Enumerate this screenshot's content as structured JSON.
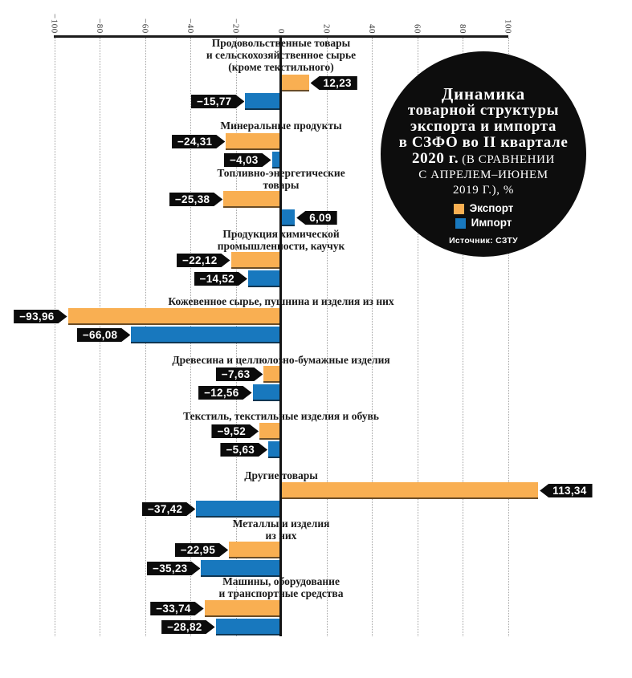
{
  "badge": {
    "title_bold_lines": [
      "Динамика",
      "товарной структуры",
      "экспорта и импорта",
      "в СЗФО во II квартале"
    ],
    "title_bold_inline": "2020 г.",
    "subtitle_inline": "(В СРАВНЕНИИ",
    "subtitle_line2": "С АПРЕЛЕМ–ИЮНЕМ",
    "subtitle_line3": "2019 Г.), %",
    "legend": [
      {
        "label": "Экспорт",
        "color": "#F9AF52"
      },
      {
        "label": "Импорт",
        "color": "#1878BE"
      }
    ],
    "source": "Источник: СЗТУ"
  },
  "chart_data": {
    "type": "bar",
    "orientation": "horizontal",
    "title": "Динамика товарной структуры экспорта и импорта в СЗФО во II квартале 2020 г. (в сравнении с апрелем–июнем 2019 г.), %",
    "source": "Источник: СЗТУ",
    "xlim": [
      -100,
      100
    ],
    "ticks": [
      -100,
      -80,
      -60,
      -40,
      -20,
      0,
      20,
      40,
      60,
      80,
      100
    ],
    "grid": "dotted-vertical",
    "legend_position": "inside-badge",
    "colors": {
      "export": "#F9AF52",
      "import": "#1878BE",
      "tag": "#0B0B0B"
    },
    "categories": [
      {
        "lines": [
          "Продовольственные товары",
          "и сельскохозяйственное сырье",
          "(кроме текстильного)"
        ]
      },
      {
        "lines": [
          "Минеральные продукты"
        ]
      },
      {
        "lines": [
          "Топливно-энергетические",
          "товары"
        ]
      },
      {
        "lines": [
          "Продукция химической",
          "промышленности, каучук"
        ]
      },
      {
        "lines": [
          "Кожевенное сырье, пушнина и изделия из них"
        ]
      },
      {
        "lines": [
          "Древесина и целлюлозно-бумажные изделия"
        ]
      },
      {
        "lines": [
          "Текстиль, текстильные изделия и обувь"
        ]
      },
      {
        "lines": [
          "Другие товары"
        ]
      },
      {
        "lines": [
          "Металлы и изделия",
          "из них"
        ]
      },
      {
        "lines": [
          "Машины, оборудование",
          "и транспортные средства"
        ]
      }
    ],
    "series": [
      {
        "name": "Экспорт",
        "color": "#F9AF52",
        "values": [
          12.23,
          -24.31,
          -25.38,
          -22.12,
          -93.96,
          -7.63,
          -9.52,
          113.34,
          -22.95,
          -33.74
        ]
      },
      {
        "name": "Импорт",
        "color": "#1878BE",
        "values": [
          -15.77,
          -4.03,
          6.09,
          -14.52,
          -66.08,
          -12.56,
          -5.63,
          -37.42,
          -35.23,
          -28.82
        ]
      }
    ],
    "value_labels": [
      [
        "12,23",
        "−15,77"
      ],
      [
        "−24,31",
        "−4,03"
      ],
      [
        "−25,38",
        "6,09"
      ],
      [
        "−22,12",
        "−14,52"
      ],
      [
        "−93,96",
        "−66,08"
      ],
      [
        "−7,63",
        "−12,56"
      ],
      [
        "−9,52",
        "−5,63"
      ],
      [
        "113,34",
        "−37,42"
      ],
      [
        "−22,95",
        "−35,23"
      ],
      [
        "−33,74",
        "−28,82"
      ]
    ]
  }
}
